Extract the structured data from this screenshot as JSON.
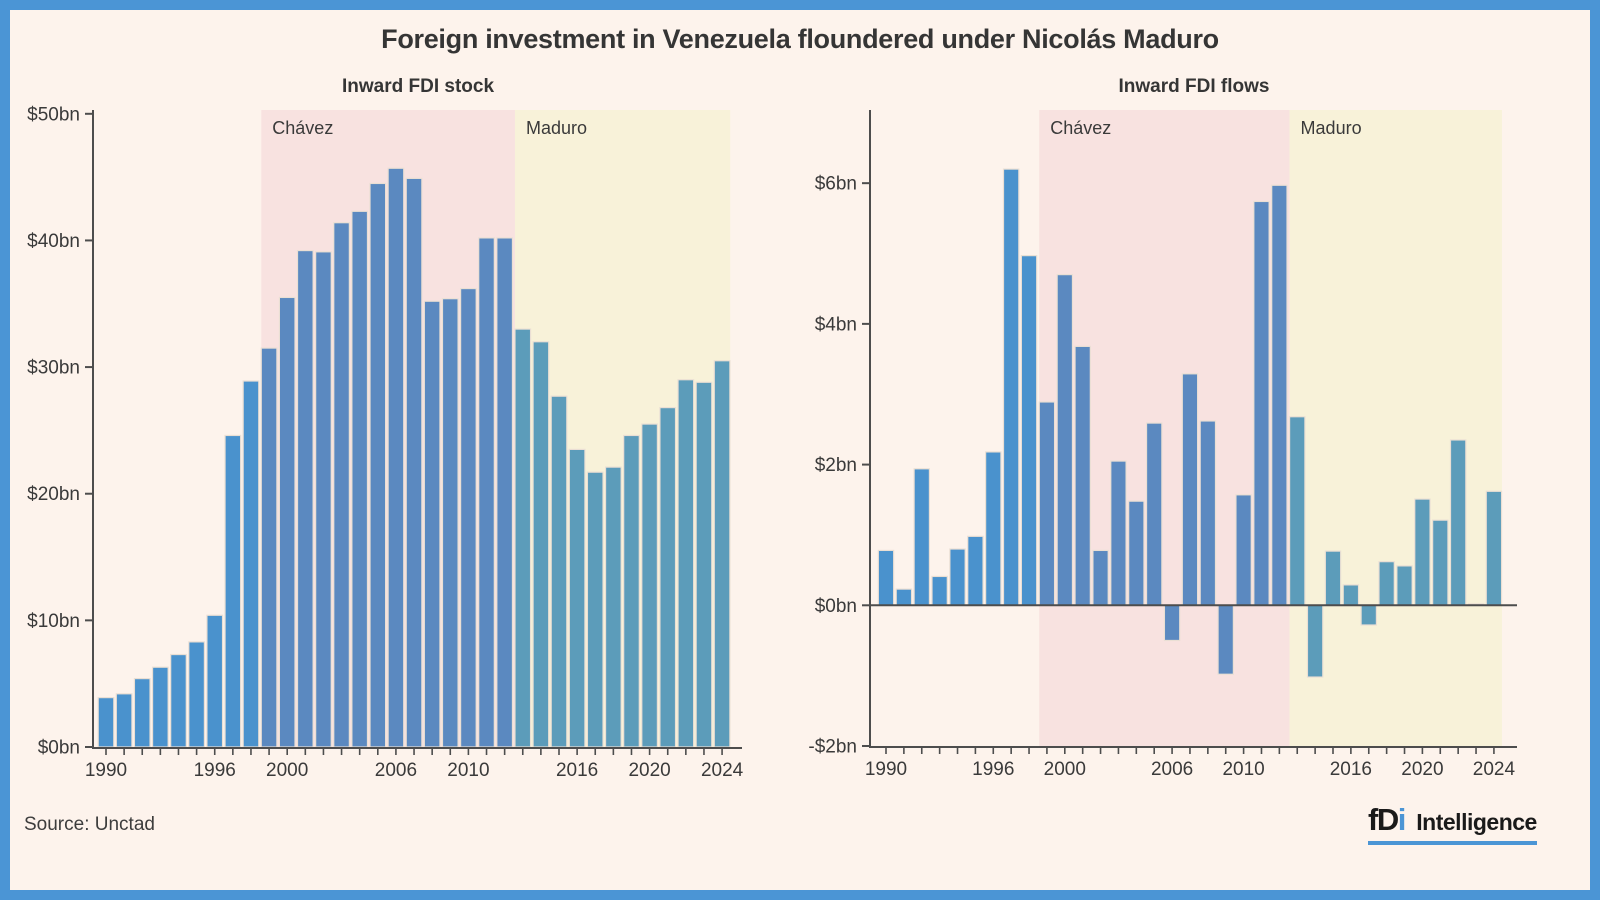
{
  "frame": {
    "border_color": "#4b95d5",
    "background": "#fdf3ec"
  },
  "header": {
    "title": "Foreign investment in Venezuela floundered under Nicolás Maduro"
  },
  "footer": {
    "source": "Source: Unctad",
    "logo": {
      "f": "f",
      "d": "D",
      "i": "i",
      "name": "Intelligence",
      "accent": "#4b95d5"
    }
  },
  "chart_data": [
    {
      "type": "bar",
      "title": "Inward FDI stock",
      "unit": "US$ billions",
      "years": [
        1990,
        1991,
        1992,
        1993,
        1994,
        1995,
        1996,
        1997,
        1998,
        1999,
        2000,
        2001,
        2002,
        2003,
        2004,
        2005,
        2006,
        2007,
        2008,
        2009,
        2010,
        2011,
        2012,
        2013,
        2014,
        2015,
        2016,
        2017,
        2018,
        2019,
        2020,
        2021,
        2022,
        2023,
        2024
      ],
      "values": [
        3.9,
        4.2,
        5.4,
        6.3,
        7.3,
        8.3,
        10.4,
        24.6,
        28.9,
        31.5,
        35.5,
        39.2,
        39.1,
        41.4,
        42.3,
        44.5,
        45.7,
        44.9,
        35.2,
        35.4,
        36.2,
        40.2,
        40.2,
        33.0,
        32.0,
        27.7,
        23.5,
        21.7,
        22.1,
        24.6,
        25.5,
        26.8,
        29.0,
        28.8,
        30.5
      ],
      "ylim": [
        0,
        50.3
      ],
      "yticks": [
        {
          "value": 0,
          "label": "$0bn"
        },
        {
          "value": 10,
          "label": "$10bn"
        },
        {
          "value": 20,
          "label": "$20bn"
        },
        {
          "value": 30,
          "label": "$30bn"
        },
        {
          "value": 40,
          "label": "$40bn"
        },
        {
          "value": 50,
          "label": "$50bn"
        }
      ],
      "xticks": [
        {
          "value": 1990,
          "label": "1990"
        },
        {
          "value": 1996,
          "label": "1996"
        },
        {
          "value": 2000,
          "label": "2000"
        },
        {
          "value": 2006,
          "label": "2006"
        },
        {
          "value": 2010,
          "label": "2010"
        },
        {
          "value": 2016,
          "label": "2016"
        },
        {
          "value": 2020,
          "label": "2020"
        },
        {
          "value": 2024,
          "label": "2024"
        }
      ],
      "grid": false,
      "legend": "none",
      "default_bar_color": "#4a92cd",
      "bar_stroke": "#eadfd4",
      "eras": [
        {
          "label": "Chávez",
          "start_year": 1998.57,
          "end_year": 2012.57,
          "band_color": "#f8e2e0",
          "bar_color": "#5b89c0"
        },
        {
          "label": "Maduro",
          "start_year": 2012.57,
          "end_year": 2024.45,
          "band_color": "#f8f2d9",
          "bar_color": "#5c9cba"
        }
      ]
    },
    {
      "type": "bar",
      "title": "Inward FDI flows",
      "unit": "US$ billions",
      "years": [
        1990,
        1991,
        1992,
        1993,
        1994,
        1995,
        1996,
        1997,
        1998,
        1999,
        2000,
        2001,
        2002,
        2003,
        2004,
        2005,
        2006,
        2007,
        2008,
        2009,
        2010,
        2011,
        2012,
        2013,
        2014,
        2015,
        2016,
        2017,
        2018,
        2019,
        2020,
        2021,
        2022,
        2023,
        2024
      ],
      "values": [
        0.78,
        0.23,
        1.94,
        0.41,
        0.8,
        0.98,
        2.18,
        6.2,
        4.97,
        2.89,
        4.7,
        3.68,
        0.78,
        2.05,
        1.48,
        2.59,
        -0.5,
        3.29,
        2.62,
        -0.98,
        1.57,
        5.74,
        5.97,
        2.68,
        -1.02,
        0.77,
        0.29,
        -0.28,
        0.62,
        0.56,
        1.51,
        1.21,
        2.35,
        0.02,
        1.62
      ],
      "ylim": [
        -2,
        7.04
      ],
      "yticks": [
        {
          "value": -2,
          "label": "-$2bn"
        },
        {
          "value": 0,
          "label": "$0bn"
        },
        {
          "value": 2,
          "label": "$2bn"
        },
        {
          "value": 4,
          "label": "$4bn"
        },
        {
          "value": 6,
          "label": "$6bn"
        }
      ],
      "xticks": [
        {
          "value": 1990,
          "label": "1990"
        },
        {
          "value": 1996,
          "label": "1996"
        },
        {
          "value": 2000,
          "label": "2000"
        },
        {
          "value": 2006,
          "label": "2006"
        },
        {
          "value": 2010,
          "label": "2010"
        },
        {
          "value": 2016,
          "label": "2016"
        },
        {
          "value": 2020,
          "label": "2020"
        },
        {
          "value": 2024,
          "label": "2024"
        }
      ],
      "grid": false,
      "legend": "none",
      "default_bar_color": "#4a92cd",
      "bar_stroke": "#eadfd4",
      "eras": [
        {
          "label": "Chávez",
          "start_year": 1998.57,
          "end_year": 2012.57,
          "band_color": "#f8e2e0",
          "bar_color": "#5b89c0"
        },
        {
          "label": "Maduro",
          "start_year": 2012.57,
          "end_year": 2024.45,
          "band_color": "#f8f2d9",
          "bar_color": "#5c9cba"
        }
      ]
    }
  ]
}
